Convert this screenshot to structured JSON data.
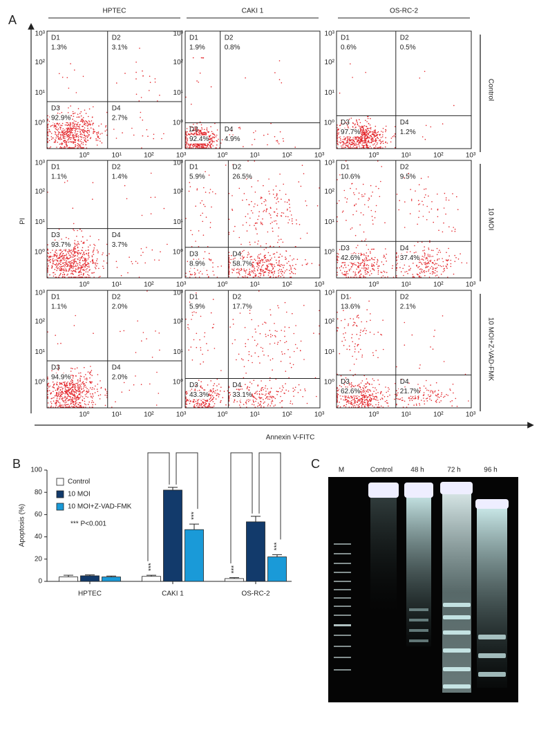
{
  "flow_cytometry": {
    "label": "A",
    "columns": [
      "HPTEC",
      "CAKI 1",
      "OS-RC-2"
    ],
    "rows": [
      "Control",
      "10 MOI",
      "10 MOI+Z-VAD-FMK"
    ],
    "y_axis_label": "PI",
    "x_axis_label": "Annexin V-FITC",
    "ticks": [
      "10⁰",
      "10¹",
      "10²",
      "10³"
    ],
    "plots": [
      [
        [
          {
            "name": "D1",
            "value": 1.3,
            "label": "1.3%"
          },
          {
            "name": "D2",
            "value": 3.1,
            "label": "3.1%"
          },
          {
            "name": "D3",
            "value": 92.9,
            "label": "92.9%"
          },
          {
            "name": "D4",
            "value": 2.7,
            "label": "2.7%"
          }
        ],
        [
          {
            "name": "D1",
            "value": 1.9,
            "label": "1.9%"
          },
          {
            "name": "D2",
            "value": 0.8,
            "label": "0.8%"
          },
          {
            "name": "D3",
            "value": 92.4,
            "label": "92.4%"
          },
          {
            "name": "D4",
            "value": 4.9,
            "label": "4.9%"
          }
        ],
        [
          {
            "name": "D1",
            "value": 0.6,
            "label": "0.6%"
          },
          {
            "name": "D2",
            "value": 0.5,
            "label": "0.5%"
          },
          {
            "name": "D3",
            "value": 97.7,
            "label": "97.7%"
          },
          {
            "name": "D4",
            "value": 1.2,
            "label": "1.2%"
          }
        ]
      ],
      [
        [
          {
            "name": "D1",
            "value": 1.1,
            "label": "1.1%"
          },
          {
            "name": "D2",
            "value": 1.4,
            "label": "1.4%"
          },
          {
            "name": "D3",
            "value": 93.7,
            "label": "93.7%"
          },
          {
            "name": "D4",
            "value": 3.7,
            "label": "3.7%"
          }
        ],
        [
          {
            "name": "D1",
            "value": 5.9,
            "label": "5.9%"
          },
          {
            "name": "D2",
            "value": 26.5,
            "label": "26.5%"
          },
          {
            "name": "D3",
            "value": 8.9,
            "label": "8.9%"
          },
          {
            "name": "D4",
            "value": 58.7,
            "label": "58.7%"
          }
        ],
        [
          {
            "name": "D1",
            "value": 10.6,
            "label": "10.6%"
          },
          {
            "name": "D2",
            "value": 9.5,
            "label": "9.5%"
          },
          {
            "name": "D3",
            "value": 42.6,
            "label": "42.6%"
          },
          {
            "name": "D4",
            "value": 37.4,
            "label": "37.4%"
          }
        ]
      ],
      [
        [
          {
            "name": "D1",
            "value": 1.1,
            "label": "1.1%"
          },
          {
            "name": "D2",
            "value": 2.0,
            "label": "2.0%"
          },
          {
            "name": "D3",
            "value": 94.9,
            "label": "94.9%"
          },
          {
            "name": "D4",
            "value": 2.0,
            "label": "2.0%"
          }
        ],
        [
          {
            "name": "D1",
            "value": 5.9,
            "label": "5.9%"
          },
          {
            "name": "D2",
            "value": 17.7,
            "label": "17.7%"
          },
          {
            "name": "D3",
            "value": 43.3,
            "label": "43.3%"
          },
          {
            "name": "D4",
            "value": 33.1,
            "label": "33.1%"
          }
        ],
        [
          {
            "name": "D1",
            "value": 13.6,
            "label": "13.6%"
          },
          {
            "name": "D2",
            "value": 2.1,
            "label": "2.1%"
          },
          {
            "name": "D3",
            "value": 62.6,
            "label": "62.6%"
          },
          {
            "name": "D4",
            "value": 21.7,
            "label": "21.7%"
          }
        ]
      ]
    ]
  },
  "chart_data": {
    "type": "bar",
    "label": "B",
    "ylabel": "Apoptosis (%)",
    "categories": [
      "HPTEC",
      "CAKI 1",
      "OS-RC-2"
    ],
    "series": [
      {
        "name": "Control",
        "color": "#ffffff",
        "values": [
          4,
          4.5,
          2.5
        ],
        "errors": [
          1.5,
          1,
          0.8
        ]
      },
      {
        "name": "10 MOI",
        "color": "#123a6b",
        "values": [
          5,
          82,
          53.5
        ],
        "errors": [
          0.8,
          2.5,
          5
        ]
      },
      {
        "name": "10 MOI+Z-VAD-FMK",
        "color": "#1a9ad8",
        "values": [
          4,
          46.5,
          22
        ],
        "errors": [
          0.8,
          5,
          2
        ]
      }
    ],
    "ylim": [
      0,
      100
    ],
    "yticks": [
      0,
      20,
      40,
      60,
      80,
      100
    ],
    "annotation": "*** P<0.001",
    "significance_label": "***"
  },
  "gel": {
    "label": "C",
    "lanes": [
      "M",
      "Control",
      "48 h",
      "72 h",
      "96 h"
    ]
  }
}
